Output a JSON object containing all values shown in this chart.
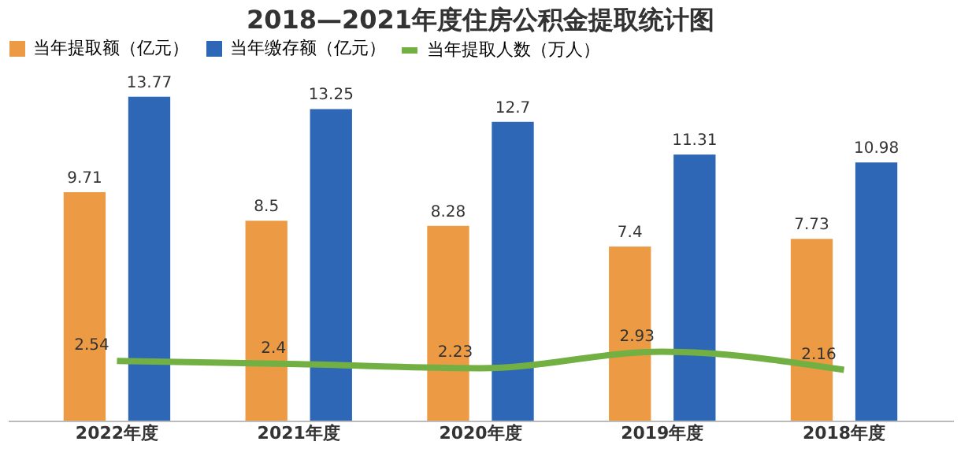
{
  "chart_data": {
    "type": "bar",
    "title": "2018—2021年度住房公积金提取统计图",
    "categories": [
      "2022年度",
      "2021年度",
      "2020年度",
      "2019年度",
      "2018年度"
    ],
    "series": [
      {
        "name": "当年提取额（亿元）",
        "color": "#ed9a44",
        "values": [
          9.71,
          8.5,
          8.28,
          7.4,
          7.73
        ]
      },
      {
        "name": "当年缴存额（亿元）",
        "color": "#2e67b5",
        "values": [
          13.77,
          13.25,
          12.7,
          11.31,
          10.98
        ]
      },
      {
        "name": "当年提取人数（万人）",
        "type": "line",
        "color": "#72b043",
        "values": [
          2.54,
          2.4,
          2.23,
          2.93,
          2.16
        ]
      }
    ],
    "data_labels": true,
    "legend": "top",
    "grid": false
  }
}
